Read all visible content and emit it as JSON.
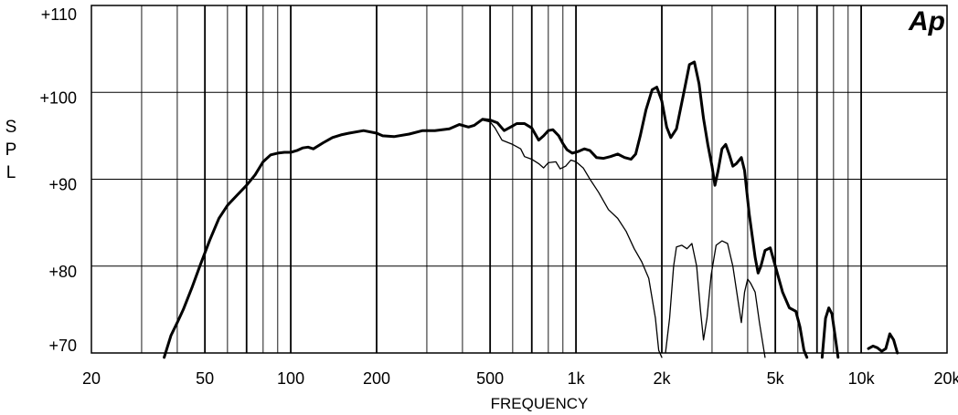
{
  "chart_data": {
    "type": "line",
    "logo": "Ap",
    "xlabel": "FREQUENCY",
    "ylabel": "SPL",
    "x_scale": "log",
    "xlim": [
      20,
      20000
    ],
    "ylim": [
      70,
      110
    ],
    "x_ticks": [
      {
        "value": 20,
        "label": "20"
      },
      {
        "value": 50,
        "label": "50"
      },
      {
        "value": 100,
        "label": "100"
      },
      {
        "value": 200,
        "label": "200"
      },
      {
        "value": 500,
        "label": "500"
      },
      {
        "value": 1000,
        "label": "1k"
      },
      {
        "value": 2000,
        "label": "2k"
      },
      {
        "value": 5000,
        "label": "5k"
      },
      {
        "value": 10000,
        "label": "10k"
      },
      {
        "value": 20000,
        "label": "20k"
      }
    ],
    "y_ticks": [
      {
        "value": 70,
        "label": "+70"
      },
      {
        "value": 80,
        "label": "+80"
      },
      {
        "value": 90,
        "label": "+90"
      },
      {
        "value": 100,
        "label": "+100"
      },
      {
        "value": 110,
        "label": "+110"
      }
    ],
    "grid": true,
    "series": [
      {
        "style": "thick",
        "points": [
          [
            36,
            69.5
          ],
          [
            38,
            72
          ],
          [
            40,
            73.5
          ],
          [
            42,
            75
          ],
          [
            45,
            77.5
          ],
          [
            48,
            80
          ],
          [
            52,
            83
          ],
          [
            56,
            85.5
          ],
          [
            60,
            87
          ],
          [
            65,
            88.2
          ],
          [
            70,
            89.3
          ],
          [
            75,
            90.5
          ],
          [
            80,
            92
          ],
          [
            85,
            92.8
          ],
          [
            90,
            93
          ],
          [
            95,
            93.1
          ],
          [
            100,
            93.1
          ],
          [
            105,
            93.3
          ],
          [
            110,
            93.6
          ],
          [
            115,
            93.7
          ],
          [
            120,
            93.5
          ],
          [
            130,
            94.2
          ],
          [
            140,
            94.8
          ],
          [
            150,
            95.1
          ],
          [
            160,
            95.3
          ],
          [
            180,
            95.6
          ],
          [
            200,
            95.3
          ],
          [
            210,
            95
          ],
          [
            230,
            94.9
          ],
          [
            260,
            95.2
          ],
          [
            290,
            95.6
          ],
          [
            320,
            95.6
          ],
          [
            360,
            95.8
          ],
          [
            390,
            96.3
          ],
          [
            420,
            96
          ],
          [
            440,
            96.2
          ],
          [
            470,
            96.9
          ],
          [
            500,
            96.8
          ],
          [
            530,
            96.5
          ],
          [
            560,
            95.6
          ],
          [
            590,
            96
          ],
          [
            620,
            96.4
          ],
          [
            660,
            96.4
          ],
          [
            700,
            95.9
          ],
          [
            740,
            94.5
          ],
          [
            770,
            95
          ],
          [
            800,
            95.6
          ],
          [
            830,
            95.7
          ],
          [
            870,
            95
          ],
          [
            900,
            94.1
          ],
          [
            930,
            93.4
          ],
          [
            970,
            93
          ],
          [
            1020,
            93.2
          ],
          [
            1070,
            93.5
          ],
          [
            1120,
            93.3
          ],
          [
            1180,
            92.5
          ],
          [
            1250,
            92.4
          ],
          [
            1320,
            92.6
          ],
          [
            1400,
            92.9
          ],
          [
            1480,
            92.5
          ],
          [
            1560,
            92.3
          ],
          [
            1620,
            92.9
          ],
          [
            1680,
            95
          ],
          [
            1760,
            98
          ],
          [
            1850,
            100.3
          ],
          [
            1920,
            100.6
          ],
          [
            2000,
            99
          ],
          [
            2080,
            96
          ],
          [
            2150,
            94.8
          ],
          [
            2250,
            95.8
          ],
          [
            2400,
            100.3
          ],
          [
            2500,
            103.2
          ],
          [
            2600,
            103.5
          ],
          [
            2700,
            101
          ],
          [
            2800,
            97
          ],
          [
            2900,
            94
          ],
          [
            3000,
            91.5
          ],
          [
            3070,
            89.3
          ],
          [
            3150,
            91
          ],
          [
            3250,
            93.5
          ],
          [
            3350,
            94
          ],
          [
            3450,
            92.8
          ],
          [
            3550,
            91.5
          ],
          [
            3650,
            91.8
          ],
          [
            3800,
            92.5
          ],
          [
            3900,
            91
          ],
          [
            4050,
            86
          ],
          [
            4250,
            81
          ],
          [
            4350,
            79.2
          ],
          [
            4450,
            80
          ],
          [
            4600,
            81.8
          ],
          [
            4800,
            82.1
          ],
          [
            5000,
            80
          ],
          [
            5300,
            77
          ],
          [
            5600,
            75.2
          ],
          [
            5900,
            74.8
          ],
          [
            6100,
            73
          ],
          [
            6300,
            70.3
          ],
          [
            6450,
            69.5
          ]
        ]
      },
      {
        "style": "thick",
        "points": [
          [
            7300,
            69.5
          ],
          [
            7500,
            74
          ],
          [
            7700,
            75.2
          ],
          [
            7900,
            74.5
          ],
          [
            8100,
            72
          ],
          [
            8300,
            69.5
          ]
        ]
      },
      {
        "style": "thick",
        "points": [
          [
            10600,
            70.5
          ],
          [
            11000,
            70.8
          ],
          [
            11400,
            70.6
          ],
          [
            11800,
            70.2
          ],
          [
            12200,
            70.5
          ],
          [
            12600,
            72.2
          ],
          [
            13000,
            71.5
          ],
          [
            13400,
            70
          ]
        ]
      },
      {
        "style": "thin",
        "points": [
          [
            470,
            96.8
          ],
          [
            500,
            96.6
          ],
          [
            520,
            95.9
          ],
          [
            550,
            94.5
          ],
          [
            600,
            94
          ],
          [
            640,
            93.5
          ],
          [
            660,
            92.6
          ],
          [
            700,
            92.3
          ],
          [
            740,
            91.8
          ],
          [
            770,
            91.3
          ],
          [
            800,
            91.9
          ],
          [
            850,
            92
          ],
          [
            880,
            91.2
          ],
          [
            920,
            91.5
          ],
          [
            960,
            92.2
          ],
          [
            1000,
            92
          ],
          [
            1060,
            91.3
          ],
          [
            1120,
            90
          ],
          [
            1200,
            88.5
          ],
          [
            1300,
            86.5
          ],
          [
            1400,
            85.5
          ],
          [
            1500,
            84
          ],
          [
            1600,
            82
          ],
          [
            1700,
            80.5
          ],
          [
            1800,
            78.6
          ],
          [
            1900,
            74
          ],
          [
            1950,
            70.3
          ],
          [
            2000,
            69.5
          ]
        ]
      },
      {
        "style": "thin",
        "points": [
          [
            2060,
            70
          ],
          [
            2130,
            74
          ],
          [
            2200,
            80
          ],
          [
            2250,
            82.2
          ],
          [
            2350,
            82.4
          ],
          [
            2450,
            82
          ],
          [
            2550,
            82.6
          ],
          [
            2650,
            80
          ],
          [
            2730,
            75
          ],
          [
            2800,
            71.5
          ],
          [
            2880,
            74
          ],
          [
            2980,
            79
          ],
          [
            3100,
            82.4
          ],
          [
            3250,
            82.9
          ],
          [
            3400,
            82.6
          ],
          [
            3550,
            80
          ],
          [
            3700,
            76
          ],
          [
            3800,
            73.5
          ],
          [
            3900,
            77
          ],
          [
            4000,
            78.5
          ],
          [
            4100,
            78
          ],
          [
            4250,
            77
          ],
          [
            4400,
            73.5
          ],
          [
            4600,
            69.5
          ]
        ]
      }
    ]
  }
}
